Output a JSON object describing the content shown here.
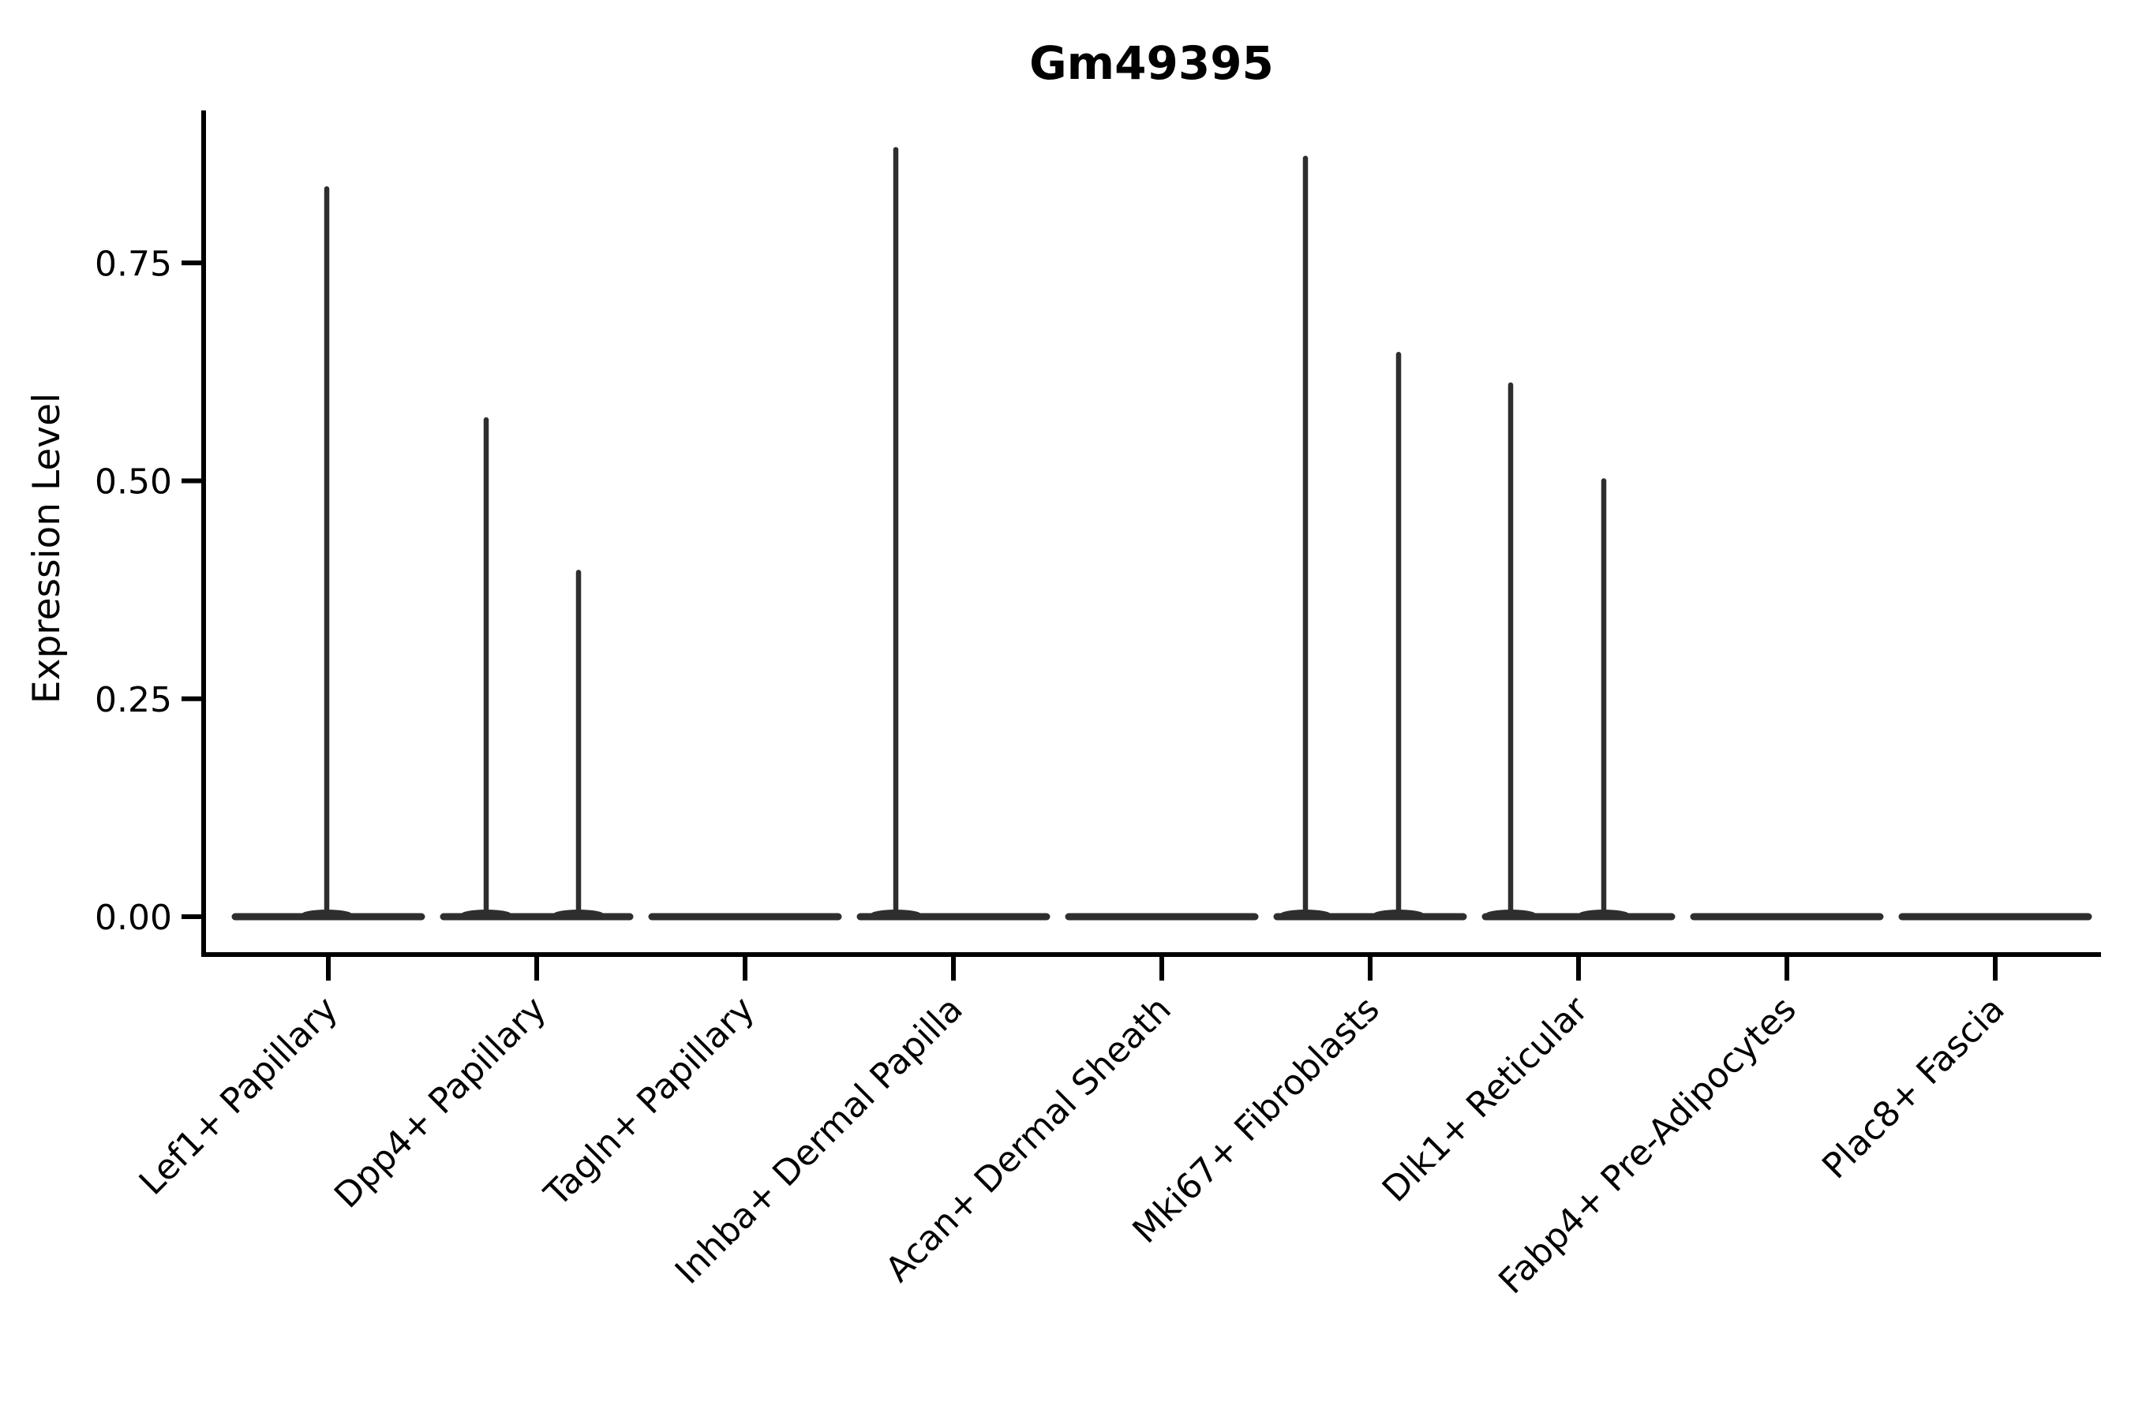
{
  "chart_data": {
    "type": "violin",
    "title": "Gm49395",
    "xlabel": "",
    "ylabel": "Expression Level",
    "categories": [
      "Lef1+ Papillary",
      "Dpp4+ Papillary",
      "Tagln+ Papillary",
      "Inhba+ Dermal Papilla",
      "Acan+ Dermal Sheath",
      "Mki67+ Fibroblasts",
      "Dlk1+ Reticular",
      "Fabp4+ Pre-Adipocytes",
      "Plac8+ Fascia"
    ],
    "ytick_labels": [
      "0.00",
      "0.25",
      "0.50",
      "0.75"
    ],
    "ytick_values": [
      0.0,
      0.25,
      0.5,
      0.75
    ],
    "ylim": [
      -0.042,
      0.92
    ],
    "grid": false,
    "legend": "none",
    "description": "Violin plot of gene expression; every violin is flattened at 0 (most cells have zero expression) with thin density spikes rising to the maximum expressed values.",
    "series": [
      {
        "category": "Lef1+ Papillary",
        "baseline_value": 0.0,
        "spikes": [
          {
            "dx": -2,
            "value": 0.835
          }
        ]
      },
      {
        "category": "Dpp4+ Papillary",
        "baseline_value": 0.0,
        "spikes": [
          {
            "dx": -64,
            "value": 0.57
          },
          {
            "dx": 53,
            "value": 0.395
          }
        ]
      },
      {
        "category": "Tagln+ Papillary",
        "baseline_value": 0.0,
        "spikes": []
      },
      {
        "category": "Inhba+ Dermal Papilla",
        "baseline_value": 0.0,
        "spikes": [
          {
            "dx": -73,
            "value": 0.88
          }
        ]
      },
      {
        "category": "Acan+ Dermal Sheath",
        "baseline_value": 0.0,
        "spikes": []
      },
      {
        "category": "Mki67+ Fibroblasts",
        "baseline_value": 0.0,
        "spikes": [
          {
            "dx": -82,
            "value": 0.87
          },
          {
            "dx": 36,
            "value": 0.645
          }
        ]
      },
      {
        "category": "Dlk1+ Reticular",
        "baseline_value": 0.0,
        "spikes": [
          {
            "dx": -86,
            "value": 0.61
          },
          {
            "dx": 32,
            "value": 0.5
          }
        ]
      },
      {
        "category": "Fabp4+ Pre-Adipocytes",
        "baseline_value": 0.0,
        "spikes": []
      },
      {
        "category": "Plac8+ Fascia",
        "baseline_value": 0.0,
        "spikes": []
      }
    ]
  },
  "colors": {
    "violin": "#2e2e2e",
    "axis": "#000000",
    "text": "#000000",
    "background": "#ffffff"
  }
}
